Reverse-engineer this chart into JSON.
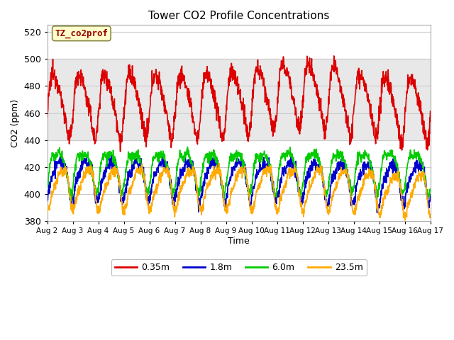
{
  "title": "Tower CO2 Profile Concentrations",
  "xlabel": "Time",
  "ylabel": "CO2 (ppm)",
  "ylim": [
    380,
    525
  ],
  "yticks": [
    380,
    400,
    420,
    440,
    460,
    480,
    500,
    520
  ],
  "xtick_labels": [
    "Aug 2",
    "Aug 3",
    "Aug 4",
    "Aug 5",
    "Aug 6",
    "Aug 7",
    "Aug 8",
    "Aug 9",
    "Aug 10",
    "Aug 11",
    "Aug 12",
    "Aug 13",
    "Aug 14",
    "Aug 15",
    "Aug 16",
    "Aug 17"
  ],
  "colors": {
    "red": "#dd0000",
    "blue": "#0000cc",
    "green": "#00cc00",
    "orange": "#ffaa00"
  },
  "line_labels": [
    "0.35m",
    "1.8m",
    "6.0m",
    "23.5m"
  ],
  "legend_label": "TZ_co2prof",
  "legend_bg": "#ffffcc",
  "legend_edge": "#888844",
  "shaded_band": [
    440,
    500
  ],
  "shaded_color": "#e8e8e8",
  "plot_bg": "#ffffff",
  "grid_color": "#cccccc",
  "n_points": 1500
}
